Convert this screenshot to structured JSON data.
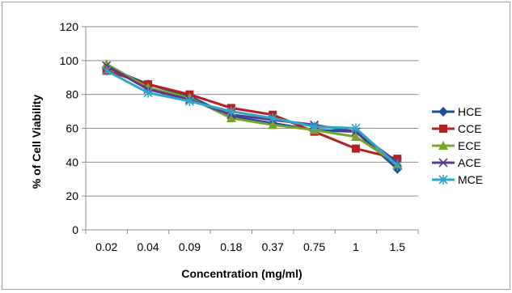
{
  "chart_data": {
    "type": "line",
    "title": "",
    "xlabel": "Concentration (mg/ml)",
    "ylabel": "% of Cell Viability",
    "ylim": [
      0,
      120
    ],
    "yticks": [
      0,
      20,
      40,
      60,
      80,
      100,
      120
    ],
    "categories": [
      "0.02",
      "0.04",
      "0.09",
      "0.18",
      "0.37",
      "0.75",
      "1",
      "1.5"
    ],
    "grid": "horizontal",
    "legend_position": "right",
    "series": [
      {
        "name": "HCE",
        "color": "#1f4e9c",
        "marker": "diamond",
        "values": [
          96,
          86,
          79,
          67,
          63,
          59,
          58,
          36
        ]
      },
      {
        "name": "CCE",
        "color": "#b22222",
        "marker": "square",
        "values": [
          94,
          86,
          80,
          72,
          68,
          58,
          48,
          42
        ]
      },
      {
        "name": "ECE",
        "color": "#7aa32a",
        "marker": "triangle",
        "values": [
          98,
          84,
          78,
          66,
          62,
          59,
          55,
          39
        ]
      },
      {
        "name": "ACE",
        "color": "#5b3a8c",
        "marker": "x",
        "values": [
          97,
          83,
          77,
          68,
          65,
          62,
          58,
          40
        ]
      },
      {
        "name": "MCE",
        "color": "#2fa8c8",
        "marker": "star",
        "values": [
          94,
          81,
          76,
          70,
          66,
          61,
          60,
          38
        ]
      }
    ]
  }
}
